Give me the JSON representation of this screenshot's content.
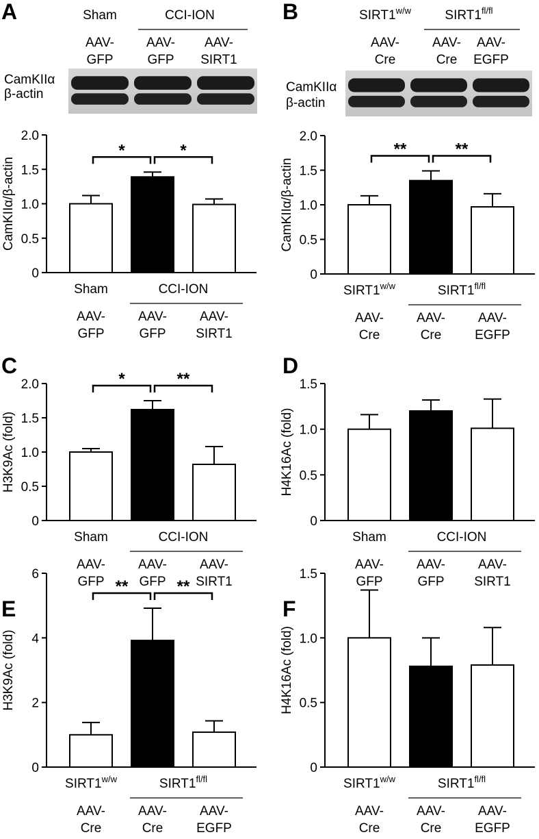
{
  "chart_data": [
    {
      "type": "bar",
      "panel": "A",
      "ylabel": "CamKIIα/β-actin",
      "group_labels": [
        "Sham",
        "CCI-ION"
      ],
      "categories": [
        [
          "AAV-",
          "GFP"
        ],
        [
          "AAV-",
          "GFP"
        ],
        [
          "AAV-",
          "SIRT1"
        ]
      ],
      "values": [
        1.0,
        1.39,
        0.99
      ],
      "errors": [
        0.12,
        0.07,
        0.08
      ],
      "colors": [
        "#ffffff",
        "#000000",
        "#ffffff"
      ],
      "ylim": [
        0,
        2
      ],
      "yticks": [
        0,
        0.5,
        {
          "value": 1,
          "label": "1.0"
        },
        1.5,
        {
          "value": 2,
          "label": "2.0"
        }
      ],
      "significance": [
        "*",
        "*"
      ]
    },
    {
      "type": "bar",
      "panel": "B",
      "ylabel": "CamKIIα/β-actin",
      "group_labels": [
        {
          "base": "SIRT1",
          "sup": "w/w"
        },
        {
          "base": "SIRT1",
          "sup": "fl/fl"
        }
      ],
      "categories": [
        [
          "AAV-",
          "Cre"
        ],
        [
          "AAV-",
          "Cre"
        ],
        [
          "AAV-",
          "EGFP"
        ]
      ],
      "values": [
        1.0,
        1.35,
        0.97
      ],
      "errors": [
        0.13,
        0.14,
        0.19
      ],
      "colors": [
        "#ffffff",
        "#000000",
        "#ffffff"
      ],
      "ylim": [
        0,
        2
      ],
      "yticks": [
        0,
        0.5,
        {
          "value": 1,
          "label": "1.0"
        },
        1.5,
        {
          "value": 2,
          "label": "2.0"
        }
      ],
      "significance": [
        "**",
        "**"
      ]
    },
    {
      "type": "bar",
      "panel": "C",
      "ylabel": "H3K9Ac (fold)",
      "group_labels": [
        "Sham",
        "CCI-ION"
      ],
      "categories": [
        [
          "AAV-",
          "GFP"
        ],
        [
          "AAV-",
          "GFP"
        ],
        [
          "AAV-",
          "SIRT1"
        ]
      ],
      "values": [
        1.0,
        1.62,
        0.82
      ],
      "errors": [
        0.05,
        0.13,
        0.26
      ],
      "colors": [
        "#ffffff",
        "#000000",
        "#ffffff"
      ],
      "ylim": [
        0,
        2
      ],
      "yticks": [
        0,
        0.5,
        {
          "value": 1,
          "label": "1.0"
        },
        1.5,
        {
          "value": 2,
          "label": "2.0"
        }
      ],
      "significance": [
        "*",
        "**"
      ]
    },
    {
      "type": "bar",
      "panel": "D",
      "ylabel": "H4K16Ac (fold)",
      "group_labels": [
        "Sham",
        "CCI-ION"
      ],
      "categories": [
        [
          "AAV-",
          "GFP"
        ],
        [
          "AAV-",
          "GFP"
        ],
        [
          "AAV-",
          "SIRT1"
        ]
      ],
      "values": [
        1.0,
        1.2,
        1.01
      ],
      "errors": [
        0.16,
        0.12,
        0.32
      ],
      "colors": [
        "#ffffff",
        "#000000",
        "#ffffff"
      ],
      "ylim": [
        0,
        1.5
      ],
      "yticks": [
        0,
        0.5,
        {
          "value": 1,
          "label": "1.0"
        },
        1.5
      ],
      "significance": []
    },
    {
      "type": "bar",
      "panel": "E",
      "ylabel": "H3K9Ac (fold)",
      "group_labels": [
        {
          "base": "SIRT1",
          "sup": "w/w"
        },
        {
          "base": "SIRT1",
          "sup": "fl/fl"
        }
      ],
      "categories": [
        [
          "AAV-",
          "Cre"
        ],
        [
          "AAV-",
          "Cre"
        ],
        [
          "AAV-",
          "EGFP"
        ]
      ],
      "values": [
        1.0,
        3.92,
        1.08
      ],
      "errors": [
        0.38,
        1.0,
        0.35
      ],
      "colors": [
        "#ffffff",
        "#000000",
        "#ffffff"
      ],
      "ylim": [
        0,
        6
      ],
      "yticks": [
        0,
        2,
        4,
        6
      ],
      "significance": [
        "**",
        "**"
      ]
    },
    {
      "type": "bar",
      "panel": "F",
      "ylabel": "H4K16Ac (fold)",
      "group_labels": [
        {
          "base": "SIRT1",
          "sup": "w/w"
        },
        {
          "base": "SIRT1",
          "sup": "fl/fl"
        }
      ],
      "categories": [
        [
          "AAV-",
          "Cre"
        ],
        [
          "AAV-",
          "Cre"
        ],
        [
          "AAV-",
          "EGFP"
        ]
      ],
      "values": [
        1.0,
        0.78,
        0.79
      ],
      "errors": [
        0.37,
        0.22,
        0.29
      ],
      "colors": [
        "#ffffff",
        "#000000",
        "#ffffff"
      ],
      "ylim": [
        0,
        1.5
      ],
      "yticks": [
        0,
        0.5,
        {
          "value": 1,
          "label": "1.0"
        },
        1.5
      ],
      "significance": []
    }
  ],
  "blots": [
    {
      "group_labels": [
        "Sham",
        "CCI-ION"
      ],
      "categories": [
        [
          "AAV-",
          "GFP"
        ],
        [
          "AAV-",
          "GFP"
        ],
        [
          "AAV-",
          "SIRT1"
        ]
      ],
      "rows": [
        "CamKIIα",
        "β-actin"
      ]
    },
    {
      "group_labels": [
        {
          "base": "SIRT1",
          "sup": "w/w"
        },
        {
          "base": "SIRT1",
          "sup": "fl/fl"
        }
      ],
      "categories": [
        [
          "AAV-",
          "Cre"
        ],
        [
          "AAV-",
          "Cre"
        ],
        [
          "AAV-",
          "EGFP"
        ]
      ],
      "rows": [
        "CamKIIα",
        "β-actin"
      ]
    }
  ]
}
